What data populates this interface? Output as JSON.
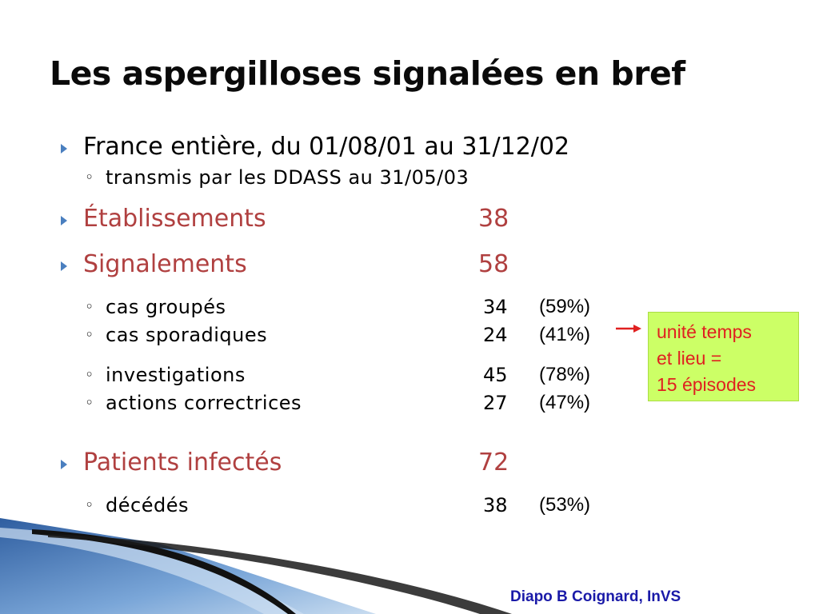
{
  "slide": {
    "title": "Les aspergilloses signalées en bref",
    "credit": "Diapo B Coignard, InVS"
  },
  "items": {
    "scope": "France entière, du 01/08/01 au 31/12/02",
    "scope_sub": "transmis par les DDASS au 31/05/03",
    "etablissements_label": "Établissements",
    "etablissements_value": "38",
    "signalements_label": "Signalements",
    "signalements_value": "58",
    "cas_groupes_label": "cas groupés",
    "cas_groupes_value": "34",
    "cas_groupes_pct": "(59%)",
    "cas_sporadiques_label": "cas sporadiques",
    "cas_sporadiques_value": "24",
    "cas_sporadiques_pct": "(41%)",
    "investigations_label": "investigations",
    "investigations_value": "45",
    "investigations_pct": "(78%)",
    "actions_label": "actions correctrices",
    "actions_value": "27",
    "actions_pct": "(47%)",
    "patients_label": "Patients infectés",
    "patients_value": "72",
    "decedes_label": "décédés",
    "decedes_value": "38",
    "decedes_pct": "(53%)"
  },
  "callout": {
    "line1": "unité temps",
    "line2": "et lieu =",
    "line3": "15 épisodes"
  },
  "colors": {
    "accent_red": "#b04040",
    "bullet_blue": "#4a7fbf",
    "callout_bg": "#ccff66",
    "callout_text": "#e02020",
    "credit_blue": "#1a1aa8"
  }
}
